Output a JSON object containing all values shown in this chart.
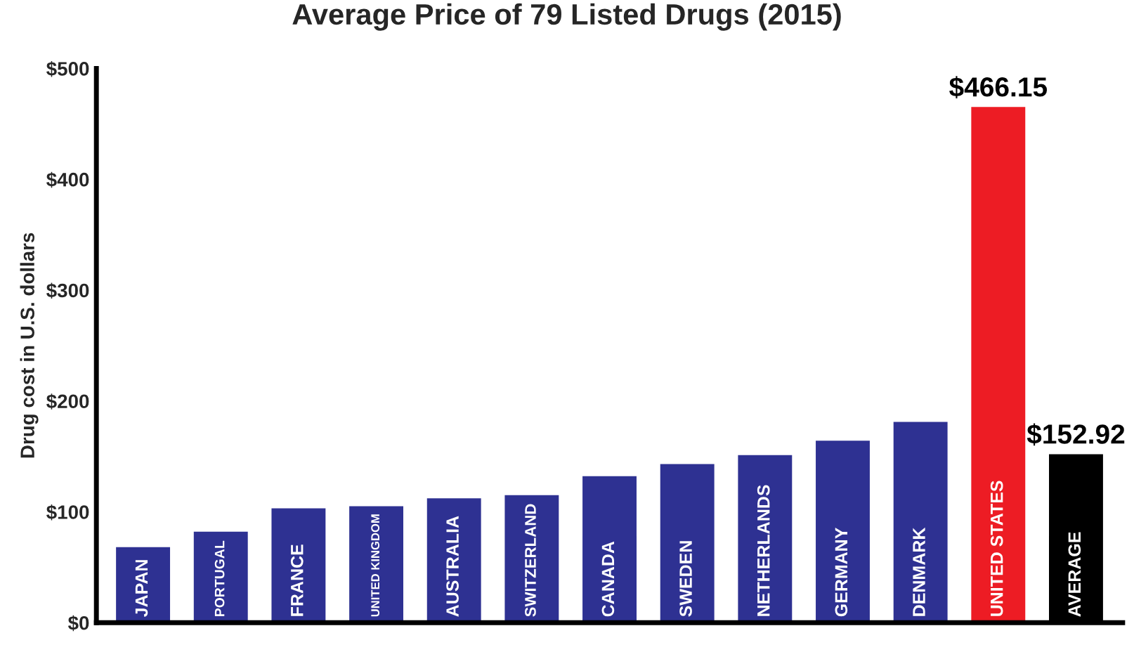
{
  "chart_data": {
    "type": "bar",
    "title": "Average Price of 79 Listed Drugs (2015)",
    "ylabel": "Drug cost in U.S. dollars",
    "categories": [
      "JAPAN",
      "PORTUGAL",
      "FRANCE",
      "UNITED KINGDOM",
      "AUSTRALIA",
      "SWITZERLAND",
      "CANADA",
      "SWEDEN",
      "NETHERLANDS",
      "GERMANY",
      "DENMARK",
      "UNITED STATES",
      "AVERAGE"
    ],
    "values": [
      69,
      83,
      104,
      106,
      113,
      116,
      133,
      144,
      152,
      165,
      182,
      466.15,
      152.92
    ],
    "colors": [
      "#2e3192",
      "#2e3192",
      "#2e3192",
      "#2e3192",
      "#2e3192",
      "#2e3192",
      "#2e3192",
      "#2e3192",
      "#2e3192",
      "#2e3192",
      "#2e3192",
      "#ed1c24",
      "#000000"
    ],
    "value_labels": [
      null,
      null,
      null,
      null,
      null,
      null,
      null,
      null,
      null,
      null,
      null,
      "$466.15",
      "$152.92"
    ],
    "ylim": [
      0,
      500
    ],
    "yticks": [
      {
        "value": 0,
        "label": "$0"
      },
      {
        "value": 100,
        "label": "$100"
      },
      {
        "value": 200,
        "label": "$200"
      },
      {
        "value": 300,
        "label": "$300"
      },
      {
        "value": 400,
        "label": "$400"
      },
      {
        "value": 500,
        "label": "$500"
      }
    ],
    "grid": false,
    "legend": false
  }
}
